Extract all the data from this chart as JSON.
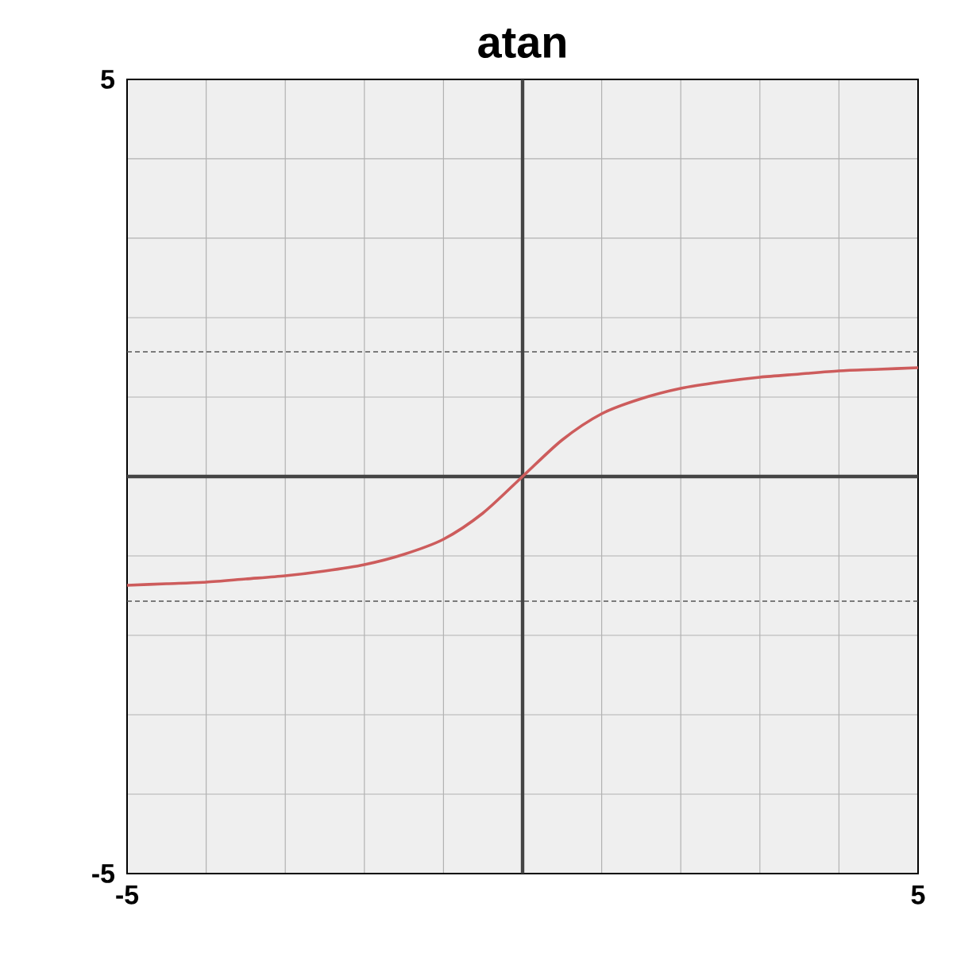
{
  "chart_data": {
    "type": "line",
    "title": "atan",
    "x": [
      -5,
      -4.5,
      -4,
      -3.5,
      -3,
      -2.5,
      -2,
      -1.5,
      -1,
      -0.5,
      0,
      0.5,
      1,
      1.5,
      2,
      2.5,
      3,
      3.5,
      4,
      4.5,
      5
    ],
    "series": [
      {
        "color": "#cd5c5c",
        "values": [
          -1.37,
          -1.35,
          -1.33,
          -1.29,
          -1.25,
          -1.19,
          -1.11,
          -0.98,
          -0.79,
          -0.46,
          0,
          0.46,
          0.79,
          0.98,
          1.11,
          1.19,
          1.25,
          1.29,
          1.33,
          1.35,
          1.37
        ]
      }
    ],
    "xlim": [
      -5,
      5
    ],
    "ylim": [
      -5,
      5
    ],
    "xticks": [
      -5,
      {
        "value": -4,
        "label": null
      },
      {
        "value": -3,
        "label": null
      },
      {
        "value": -2,
        "label": null
      },
      {
        "value": -1,
        "label": null
      },
      {
        "value": 1,
        "label": null
      },
      {
        "value": 2,
        "label": null
      },
      {
        "value": 3,
        "label": null
      },
      {
        "value": 4,
        "label": null
      },
      5
    ],
    "yticks": [
      -5,
      {
        "value": -4,
        "label": null
      },
      {
        "value": -3,
        "label": null
      },
      {
        "value": -2,
        "label": null
      },
      {
        "value": -1,
        "label": null
      },
      {
        "value": 1,
        "label": null
      },
      {
        "value": 2,
        "label": null
      },
      {
        "value": 3,
        "label": null
      },
      {
        "value": 4,
        "label": null
      },
      5
    ],
    "grid": true,
    "marker": "none",
    "line_style": "solid",
    "ref_lines": [
      {
        "axis": "y",
        "value": 1.57,
        "color": "#555555",
        "line_style": "dashed"
      },
      {
        "axis": "y",
        "value": -1.57,
        "color": "#555555",
        "line_style": "dashed"
      },
      {
        "axis": "x",
        "value": 0,
        "color": "#444444",
        "line_style": "solid"
      },
      {
        "axis": "y",
        "value": 0,
        "color": "#444444",
        "line_style": "solid"
      }
    ]
  }
}
